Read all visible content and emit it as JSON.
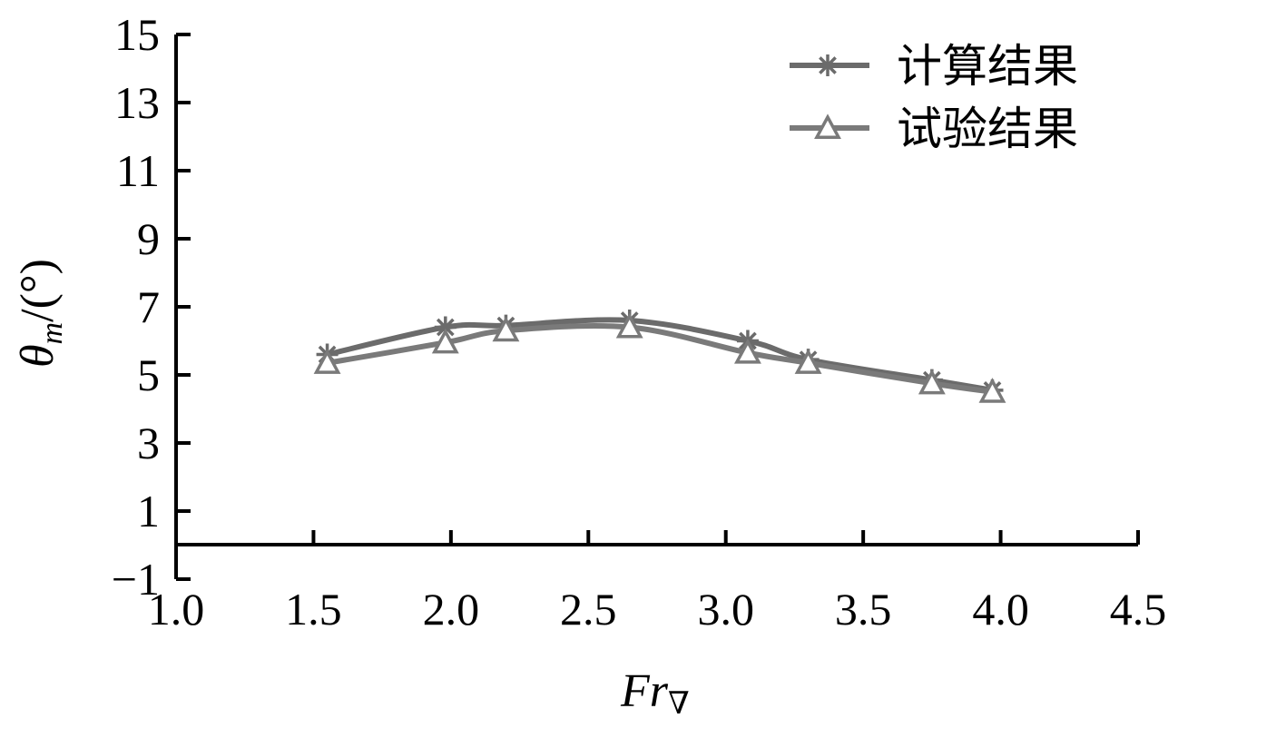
{
  "chart_data": {
    "type": "line",
    "xlabel": "Fr",
    "xlabel_sub": "∇",
    "ylabel": "θ",
    "ylabel_sub": "m",
    "ylabel_unit": "/(°)",
    "xlim": [
      1.0,
      4.5
    ],
    "ylim": [
      -1,
      15
    ],
    "xticks": [
      "1.0",
      "1.5",
      "2.0",
      "2.5",
      "3.0",
      "3.5",
      "4.0",
      "4.5"
    ],
    "yticks": [
      "15",
      "13",
      "11",
      "9",
      "7",
      "5",
      "3",
      "1",
      "−1"
    ],
    "ytick_values": [
      15,
      13,
      11,
      9,
      7,
      5,
      3,
      1,
      -1
    ],
    "xtick_values": [
      1.0,
      1.5,
      2.0,
      2.5,
      3.0,
      3.5,
      4.0,
      4.5
    ],
    "grid": false,
    "legend_position": "top-right",
    "series": [
      {
        "name": "计算结果",
        "marker": "asterisk",
        "color": "#6b6b6b",
        "x": [
          1.55,
          1.98,
          2.2,
          2.65,
          3.08,
          3.3,
          3.75,
          3.97
        ],
        "y": [
          5.6,
          6.4,
          6.45,
          6.6,
          6.0,
          5.45,
          4.85,
          4.55
        ]
      },
      {
        "name": "试验结果",
        "marker": "triangle",
        "color": "#7a7a7a",
        "x": [
          1.55,
          1.98,
          2.2,
          2.65,
          3.08,
          3.3,
          3.75,
          3.97
        ],
        "y": [
          5.35,
          5.95,
          6.3,
          6.4,
          5.65,
          5.35,
          4.75,
          4.5
        ]
      }
    ]
  }
}
